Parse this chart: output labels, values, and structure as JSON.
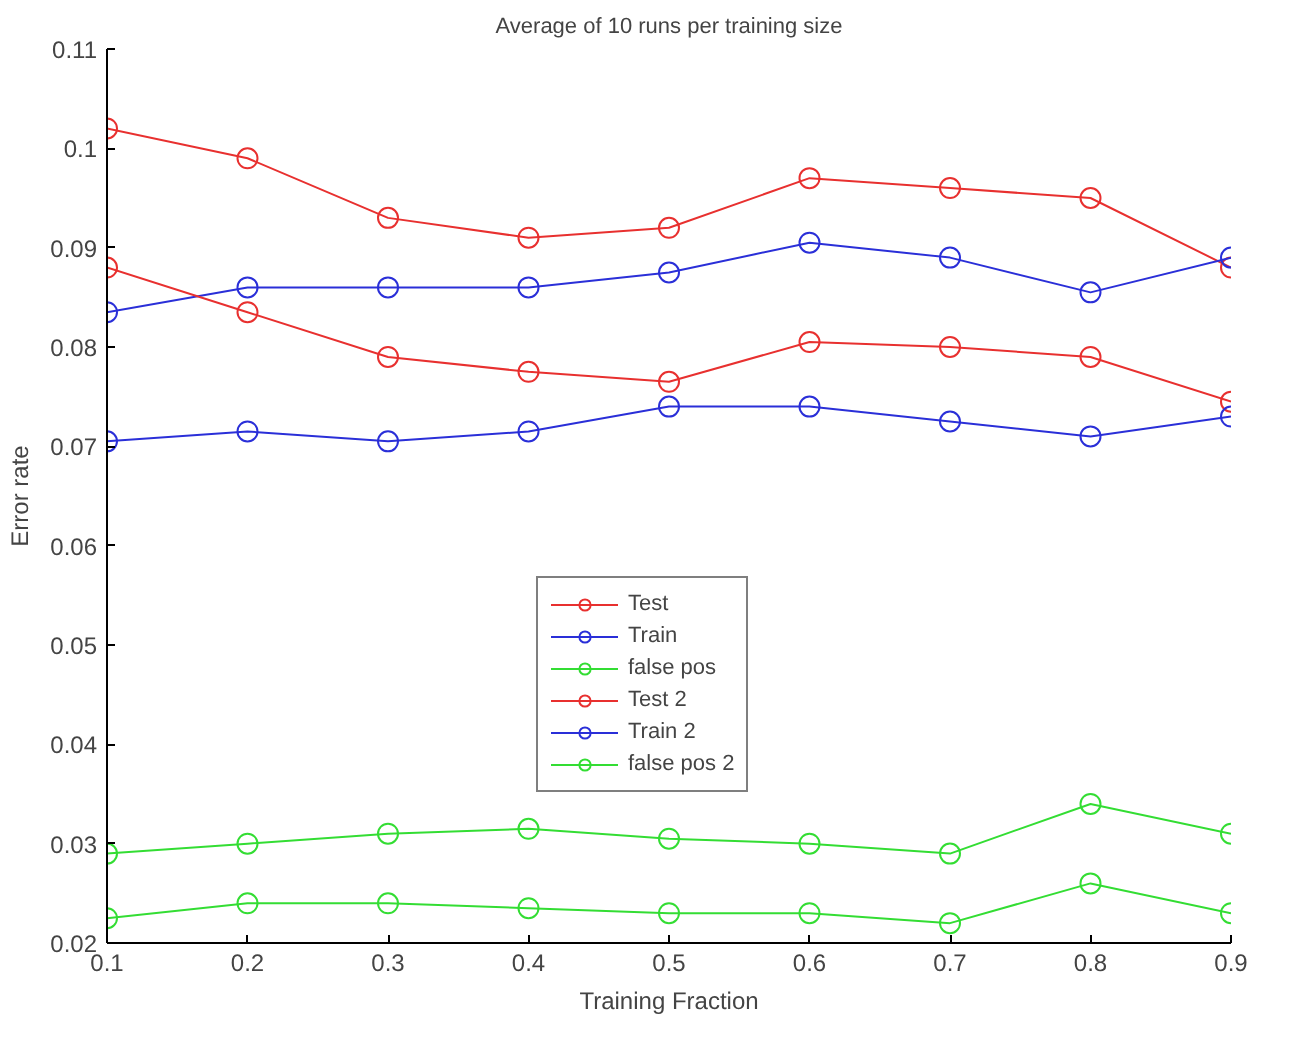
{
  "chart_data": {
    "type": "line",
    "title": "Average of 10 runs per training size",
    "xlabel": "Training Fraction",
    "ylabel": "Error rate",
    "x": [
      0.1,
      0.2,
      0.3,
      0.4,
      0.5,
      0.6,
      0.7,
      0.8,
      0.9
    ],
    "series": [
      {
        "name": "Test",
        "color": "#e8302f",
        "values": [
          0.102,
          0.099,
          0.093,
          0.091,
          0.092,
          0.097,
          0.096,
          0.095,
          0.088
        ]
      },
      {
        "name": "Train",
        "color": "#2a2fd8",
        "values": [
          0.0835,
          0.086,
          0.086,
          0.086,
          0.0875,
          0.0905,
          0.089,
          0.0855,
          0.089
        ]
      },
      {
        "name": "false pos",
        "color": "#33dd33",
        "values": [
          0.029,
          0.03,
          0.031,
          0.0315,
          0.0305,
          0.03,
          0.029,
          0.034,
          0.031
        ]
      },
      {
        "name": "Test 2",
        "color": "#e8302f",
        "values": [
          0.088,
          0.0835,
          0.079,
          0.0775,
          0.0765,
          0.0805,
          0.08,
          0.079,
          0.0745
        ]
      },
      {
        "name": "Train 2",
        "color": "#2a2fd8",
        "values": [
          0.0705,
          0.0715,
          0.0705,
          0.0715,
          0.074,
          0.074,
          0.0725,
          0.071,
          0.073
        ]
      },
      {
        "name": "false pos 2",
        "color": "#33dd33",
        "values": [
          0.0225,
          0.024,
          0.024,
          0.0235,
          0.023,
          0.023,
          0.022,
          0.026,
          0.023
        ]
      }
    ],
    "xlim": [
      0.1,
      0.9
    ],
    "xticks": [
      0.1,
      0.2,
      0.3,
      0.4,
      0.5,
      0.6,
      0.7,
      0.8,
      0.9
    ],
    "ylim": [
      0.02,
      0.11
    ],
    "yticks": [
      0.02,
      0.03,
      0.04,
      0.05,
      0.06,
      0.07,
      0.08,
      0.09,
      0.1,
      0.11
    ],
    "marker": "circle",
    "line_style": "solid",
    "grid": false,
    "legend": "center"
  }
}
